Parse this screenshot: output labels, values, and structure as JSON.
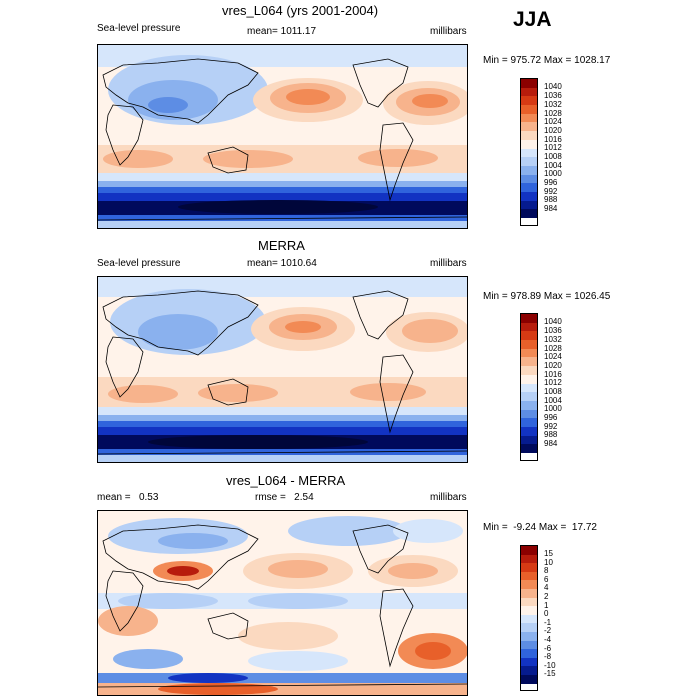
{
  "season": "JJA",
  "panels": [
    {
      "title": "vres_L064 (yrs 2001-2004)",
      "left_label": "Sea-level pressure",
      "center_label": "mean= 1011.17",
      "right_label": "millibars",
      "minmax": "Min = 975.72 Max = 1028.17",
      "levels": [
        "1040",
        "1036",
        "1032",
        "1028",
        "1024",
        "1020",
        "1016",
        "1012",
        "1008",
        "1004",
        "1000",
        "996",
        "992",
        "988",
        "984"
      ],
      "colors": [
        "#8b0000",
        "#b71c0c",
        "#d63a14",
        "#e8602a",
        "#f28a55",
        "#f7b38c",
        "#fbd9c0",
        "#fff3ea",
        "#d6e6fb",
        "#b6d0f6",
        "#8ab1ee",
        "#5d8de4",
        "#3064dc",
        "#1233c2",
        "#061b8e",
        "#000a5c"
      ]
    },
    {
      "title": "MERRA",
      "left_label": "Sea-level pressure",
      "center_label": "mean= 1010.64",
      "right_label": "millibars",
      "minmax": "Min = 978.89 Max = 1026.45",
      "levels": [
        "1040",
        "1036",
        "1032",
        "1028",
        "1024",
        "1020",
        "1016",
        "1012",
        "1008",
        "1004",
        "1000",
        "996",
        "992",
        "988",
        "984"
      ],
      "colors": [
        "#8b0000",
        "#b71c0c",
        "#d63a14",
        "#e8602a",
        "#f28a55",
        "#f7b38c",
        "#fbd9c0",
        "#fff3ea",
        "#d6e6fb",
        "#b6d0f6",
        "#8ab1ee",
        "#5d8de4",
        "#3064dc",
        "#1233c2",
        "#061b8e",
        "#000a5c"
      ]
    },
    {
      "title": "vres_L064 - MERRA",
      "left_label": "mean =   0.53",
      "center_label": "rmse =   2.54",
      "right_label": "millibars",
      "minmax": "Min =  -9.24 Max =  17.72",
      "levels": [
        "15",
        "10",
        "8",
        "6",
        "4",
        "2",
        "1",
        "0",
        "-1",
        "-2",
        "-4",
        "-6",
        "-8",
        "-10",
        "-15"
      ],
      "colors": [
        "#8b0000",
        "#b71c0c",
        "#d63a14",
        "#e8602a",
        "#f28a55",
        "#f7b38c",
        "#fbd9c0",
        "#fff3ea",
        "#d6e6fb",
        "#b6d0f6",
        "#8ab1ee",
        "#5d8de4",
        "#3064dc",
        "#1233c2",
        "#061b8e",
        "#000a5c"
      ]
    }
  ]
}
